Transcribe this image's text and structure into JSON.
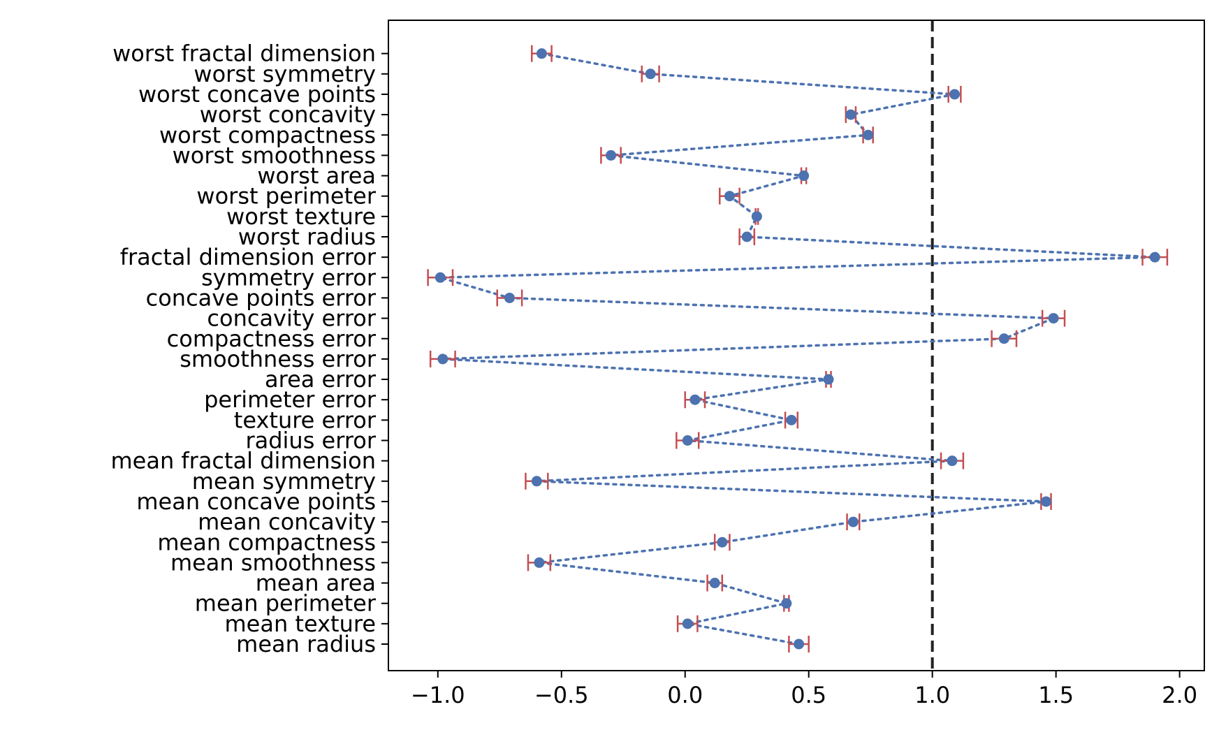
{
  "chart_data": {
    "type": "scatter",
    "title": "",
    "xlabel": "",
    "ylabel": "",
    "xlim": [
      -1.2,
      2.1
    ],
    "x_ticks": [
      -1.0,
      -0.5,
      0.0,
      0.5,
      1.0,
      1.5,
      2.0
    ],
    "x_tick_labels": [
      "−1.0",
      "−0.5",
      "0.0",
      "0.5",
      "1.0",
      "1.5",
      "2.0"
    ],
    "grid": false,
    "legend": "none",
    "reference_line": {
      "x": 1.0,
      "style": "dashed",
      "color": "#222222"
    },
    "connector_style": "dotted",
    "colors": {
      "points": "#4c72b0",
      "errorbars": "#c44e52",
      "connector": "#4c72b0"
    },
    "categories": [
      "mean radius",
      "mean texture",
      "mean perimeter",
      "mean area",
      "mean smoothness",
      "mean compactness",
      "mean concavity",
      "mean concave points",
      "mean symmetry",
      "mean fractal dimension",
      "radius error",
      "texture error",
      "perimeter error",
      "area error",
      "smoothness error",
      "compactness error",
      "concavity error",
      "concave points error",
      "symmetry error",
      "fractal dimension error",
      "worst radius",
      "worst texture",
      "worst perimeter",
      "worst area",
      "worst smoothness",
      "worst compactness",
      "worst concavity",
      "worst concave points",
      "worst symmetry",
      "worst fractal dimension"
    ],
    "values": [
      0.46,
      0.01,
      0.41,
      0.12,
      -0.59,
      0.15,
      0.68,
      1.46,
      -0.6,
      1.08,
      0.01,
      0.43,
      0.04,
      0.58,
      -0.98,
      1.29,
      1.49,
      -0.71,
      -0.99,
      1.9,
      0.25,
      0.29,
      0.18,
      0.48,
      -0.3,
      0.74,
      0.67,
      1.09,
      -0.14,
      -0.58
    ],
    "errors": [
      0.04,
      0.04,
      0.01,
      0.03,
      0.045,
      0.03,
      0.025,
      0.02,
      0.045,
      0.045,
      0.045,
      0.025,
      0.04,
      0.01,
      0.05,
      0.05,
      0.045,
      0.05,
      0.05,
      0.05,
      0.03,
      0.005,
      0.04,
      0.01,
      0.04,
      0.02,
      0.02,
      0.025,
      0.035,
      0.04
    ]
  }
}
